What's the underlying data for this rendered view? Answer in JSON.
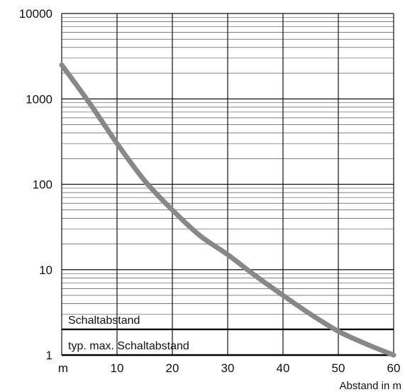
{
  "chart_data": {
    "type": "line",
    "x_unit_label": "m",
    "xlabel": "Abstand in m",
    "x_ticks": [
      10,
      20,
      30,
      40,
      50,
      60
    ],
    "xlim": [
      0,
      60
    ],
    "ylabel": "",
    "y_scale": "log",
    "ylim": [
      1,
      10000
    ],
    "y_ticks": [
      1,
      10,
      100,
      1000,
      10000
    ],
    "grid": true,
    "series": [
      {
        "x": [
          0,
          5,
          10,
          15,
          20,
          25,
          30,
          35,
          40,
          45,
          50,
          55,
          60
        ],
        "y": [
          2500,
          900,
          300,
          110,
          50,
          25,
          15,
          8.5,
          5,
          3,
          1.9,
          1.35,
          1
        ],
        "color": "#888888"
      }
    ],
    "annotations": [
      {
        "label": "Schaltabstand",
        "y": 2
      },
      {
        "label": "typ. max. Schaltabstand",
        "y": 1
      }
    ]
  }
}
